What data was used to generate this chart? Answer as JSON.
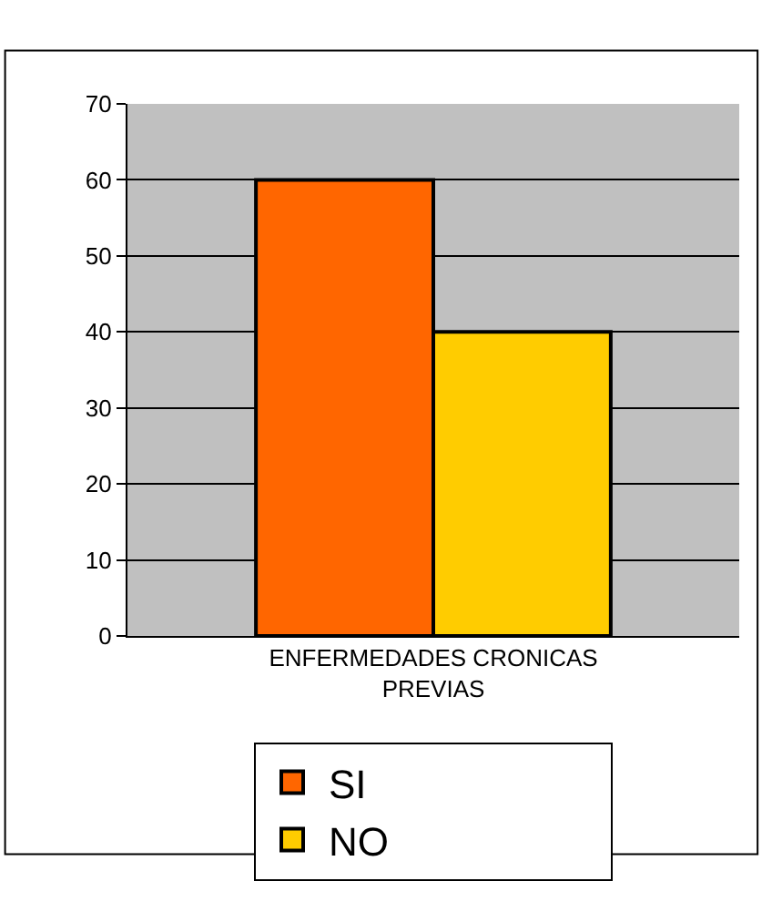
{
  "chart_data": {
    "type": "bar",
    "categories": [
      "ENFERMEDADES CRONICAS PREVIAS"
    ],
    "series": [
      {
        "name": "SI",
        "color": "#ff6600",
        "values": [
          60
        ]
      },
      {
        "name": "NO",
        "color": "#ffcc00",
        "values": [
          40
        ]
      }
    ],
    "ylim": [
      0,
      70
    ],
    "yticks": [
      0,
      10,
      20,
      30,
      40,
      50,
      60,
      70
    ],
    "grid": "y",
    "legend": "bottom"
  }
}
